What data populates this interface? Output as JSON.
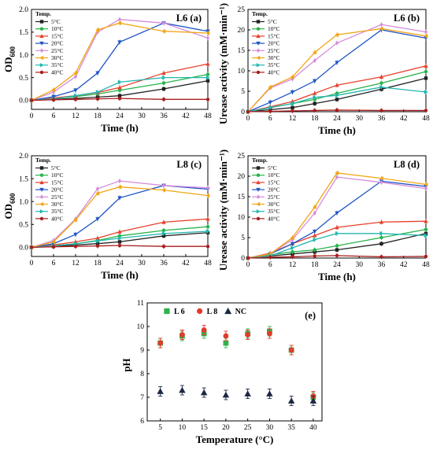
{
  "palette": {
    "5°C": "#222222",
    "10°C": "#27b34a",
    "15°C": "#e8412c",
    "20°C": "#1f55c5",
    "25°C": "#d58cdb",
    "30°C": "#f2a516",
    "35°C": "#22b6b0",
    "40°C": "#a81d1d",
    "L 6": "#2fb34a",
    "L 8": "#e23b2c",
    "NC": "#1c2744"
  },
  "chart_data": [
    {
      "id": "a",
      "type": "line",
      "panel_label": "L6  (a)",
      "xlabel": "Time (h)",
      "ylabel": "OD600",
      "ylabel_main": "OD",
      "ylabel_sub": "600",
      "xlim": [
        0,
        48
      ],
      "ylim": [
        -0.2,
        2.0
      ],
      "xticks": [
        0,
        6,
        12,
        18,
        24,
        30,
        36,
        42,
        48
      ],
      "yticks": [
        "0.0",
        "0.5",
        "1.0",
        "1.5",
        "2.0"
      ],
      "legend_title": "Temp.",
      "legend_position": "top-left",
      "x": [
        0,
        6,
        12,
        18,
        24,
        36,
        48
      ],
      "series": [
        {
          "name": "5°C",
          "marker": "square",
          "values": [
            0.0,
            0.02,
            0.04,
            0.07,
            0.1,
            0.25,
            0.43
          ]
        },
        {
          "name": "10°C",
          "marker": "circle",
          "values": [
            0.0,
            0.04,
            0.08,
            0.14,
            0.22,
            0.38,
            0.57
          ]
        },
        {
          "name": "15°C",
          "marker": "triangle-up",
          "values": [
            0.0,
            0.05,
            0.1,
            0.17,
            0.28,
            0.6,
            0.8
          ]
        },
        {
          "name": "20°C",
          "marker": "triangle-down",
          "values": [
            0.0,
            0.08,
            0.22,
            0.6,
            1.28,
            1.7,
            1.52
          ]
        },
        {
          "name": "25°C",
          "marker": "diamond",
          "values": [
            0.0,
            0.18,
            0.52,
            1.5,
            1.78,
            1.7,
            1.37
          ]
        },
        {
          "name": "30°C",
          "marker": "triangle-left",
          "values": [
            0.0,
            0.23,
            0.6,
            1.55,
            1.7,
            1.52,
            1.48
          ]
        },
        {
          "name": "35°C",
          "marker": "triangle-right",
          "values": [
            0.0,
            0.03,
            0.1,
            0.18,
            0.4,
            0.5,
            0.5
          ]
        },
        {
          "name": "40°C",
          "marker": "hexagon",
          "values": [
            0.0,
            0.01,
            0.02,
            0.03,
            0.04,
            0.02,
            0.02
          ]
        }
      ]
    },
    {
      "id": "b",
      "type": "line",
      "panel_label": "L6  (b)",
      "xlabel": "Time (h)",
      "ylabel": "Urease activity (mM·min⁻¹)",
      "xlim": [
        0,
        48
      ],
      "ylim": [
        0,
        25
      ],
      "xticks": [
        0,
        6,
        12,
        18,
        24,
        30,
        36,
        42,
        48
      ],
      "yticks": [
        "0",
        "5",
        "10",
        "15",
        "20",
        "25"
      ],
      "legend_title": "Temp.",
      "legend_position": "top-left",
      "x": [
        0,
        6,
        12,
        18,
        24,
        36,
        48
      ],
      "series": [
        {
          "name": "5°C",
          "marker": "square",
          "values": [
            0.0,
            0.5,
            1.0,
            2.0,
            3.0,
            5.5,
            8.2
          ]
        },
        {
          "name": "10°C",
          "marker": "circle",
          "values": [
            0.0,
            1.0,
            2.0,
            3.0,
            4.5,
            7.0,
            9.8
          ]
        },
        {
          "name": "15°C",
          "marker": "triangle-up",
          "values": [
            0.0,
            1.2,
            2.5,
            4.5,
            6.5,
            8.5,
            11.2
          ]
        },
        {
          "name": "20°C",
          "marker": "triangle-down",
          "values": [
            0.0,
            2.3,
            4.8,
            7.5,
            12.0,
            20.0,
            18.0
          ]
        },
        {
          "name": "25°C",
          "marker": "diamond",
          "values": [
            0.0,
            5.8,
            8.0,
            12.5,
            16.8,
            21.3,
            19.5
          ]
        },
        {
          "name": "30°C",
          "marker": "triangle-left",
          "values": [
            0.0,
            6.0,
            8.5,
            14.5,
            18.8,
            20.3,
            18.5
          ]
        },
        {
          "name": "35°C",
          "marker": "triangle-right",
          "values": [
            0.0,
            1.0,
            2.0,
            3.5,
            4.0,
            6.0,
            4.8
          ]
        },
        {
          "name": "40°C",
          "marker": "hexagon",
          "values": [
            0.0,
            0.1,
            0.2,
            0.3,
            0.4,
            0.3,
            0.3
          ]
        }
      ]
    },
    {
      "id": "c",
      "type": "line",
      "panel_label": "L8  (c)",
      "xlabel": "Time (h)",
      "ylabel": "OD600",
      "ylabel_main": "OD",
      "ylabel_sub": "600",
      "xlim": [
        0,
        48
      ],
      "ylim": [
        -0.2,
        2.0
      ],
      "xticks": [
        0,
        6,
        12,
        18,
        24,
        30,
        36,
        42,
        48
      ],
      "yticks": [
        "0.0",
        "0.5",
        "1.0",
        "1.5",
        "2.0"
      ],
      "legend_title": "Temp.",
      "legend_position": "top-left",
      "x": [
        0,
        6,
        12,
        18,
        24,
        36,
        48
      ],
      "series": [
        {
          "name": "5°C",
          "marker": "square",
          "values": [
            0.0,
            0.02,
            0.05,
            0.08,
            0.12,
            0.25,
            0.32
          ]
        },
        {
          "name": "10°C",
          "marker": "circle",
          "values": [
            0.0,
            0.03,
            0.08,
            0.15,
            0.25,
            0.37,
            0.45
          ]
        },
        {
          "name": "15°C",
          "marker": "triangle-up",
          "values": [
            0.0,
            0.05,
            0.12,
            0.2,
            0.34,
            0.55,
            0.62
          ]
        },
        {
          "name": "20°C",
          "marker": "triangle-down",
          "values": [
            0.0,
            0.08,
            0.28,
            0.62,
            1.08,
            1.35,
            1.27
          ]
        },
        {
          "name": "25°C",
          "marker": "diamond",
          "values": [
            0.0,
            0.15,
            0.62,
            1.28,
            1.45,
            1.35,
            1.3
          ]
        },
        {
          "name": "30°C",
          "marker": "triangle-left",
          "values": [
            0.0,
            0.12,
            0.6,
            1.18,
            1.32,
            1.25,
            1.13
          ]
        },
        {
          "name": "35°C",
          "marker": "triangle-right",
          "values": [
            0.0,
            0.03,
            0.08,
            0.14,
            0.2,
            0.3,
            0.35
          ]
        },
        {
          "name": "40°C",
          "marker": "hexagon",
          "values": [
            0.0,
            0.01,
            0.02,
            0.03,
            0.04,
            0.02,
            0.02
          ]
        }
      ]
    },
    {
      "id": "d",
      "type": "line",
      "panel_label": "L8  (d)",
      "xlabel": "Time (h)",
      "ylabel": "Urease activity (mM·min⁻¹)",
      "xlim": [
        0,
        48
      ],
      "ylim": [
        0,
        25
      ],
      "xticks": [
        0,
        6,
        12,
        18,
        24,
        30,
        36,
        42,
        48
      ],
      "yticks": [
        "0",
        "5",
        "10",
        "15",
        "20",
        "25"
      ],
      "legend_title": "Temp.",
      "legend_position": "top-left",
      "x": [
        0,
        6,
        12,
        18,
        24,
        36,
        48
      ],
      "series": [
        {
          "name": "5°C",
          "marker": "square",
          "values": [
            0.0,
            0.5,
            1.0,
            1.5,
            2.0,
            3.5,
            6.0
          ]
        },
        {
          "name": "10°C",
          "marker": "circle",
          "values": [
            0.0,
            0.8,
            1.5,
            2.0,
            3.0,
            5.0,
            7.0
          ]
        },
        {
          "name": "15°C",
          "marker": "triangle-up",
          "values": [
            0.0,
            1.2,
            3.5,
            5.5,
            7.5,
            8.8,
            9.0
          ]
        },
        {
          "name": "20°C",
          "marker": "triangle-down",
          "values": [
            0.0,
            1.0,
            3.5,
            6.5,
            11.0,
            18.8,
            17.5
          ]
        },
        {
          "name": "25°C",
          "marker": "diamond",
          "values": [
            0.0,
            1.0,
            4.5,
            11.0,
            19.8,
            18.5,
            17.0
          ]
        },
        {
          "name": "30°C",
          "marker": "triangle-left",
          "values": [
            0.0,
            1.0,
            5.0,
            12.5,
            20.8,
            19.5,
            18.0
          ]
        },
        {
          "name": "35°C",
          "marker": "triangle-right",
          "values": [
            0.0,
            0.5,
            2.5,
            4.5,
            6.0,
            6.0,
            5.5
          ]
        },
        {
          "name": "40°C",
          "marker": "hexagon",
          "values": [
            0.0,
            0.2,
            0.3,
            0.5,
            0.6,
            0.3,
            0.4
          ]
        }
      ]
    },
    {
      "id": "e",
      "type": "scatter",
      "panel_label": "(e)",
      "xlabel": "Temperature (°C)",
      "ylabel": "pH",
      "xlim": [
        2,
        42
      ],
      "ylim": [
        6,
        11
      ],
      "xticks": [
        5,
        10,
        15,
        20,
        25,
        30,
        35,
        40
      ],
      "yticks": [
        "6",
        "7",
        "8",
        "9",
        "10",
        "11"
      ],
      "legend_position": "top",
      "x": [
        5,
        10,
        15,
        20,
        25,
        30,
        35,
        40
      ],
      "series": [
        {
          "name": "L 6",
          "marker": "square",
          "values": [
            9.3,
            9.6,
            9.7,
            9.3,
            9.7,
            9.8,
            9.0,
            7.0
          ]
        },
        {
          "name": "L 8",
          "marker": "circle",
          "values": [
            9.3,
            9.65,
            9.85,
            9.6,
            9.65,
            9.7,
            9.0,
            7.05
          ]
        },
        {
          "name": "NC",
          "marker": "triangle-up",
          "values": [
            7.25,
            7.3,
            7.2,
            7.1,
            7.15,
            7.15,
            6.85,
            6.85
          ]
        }
      ]
    }
  ]
}
